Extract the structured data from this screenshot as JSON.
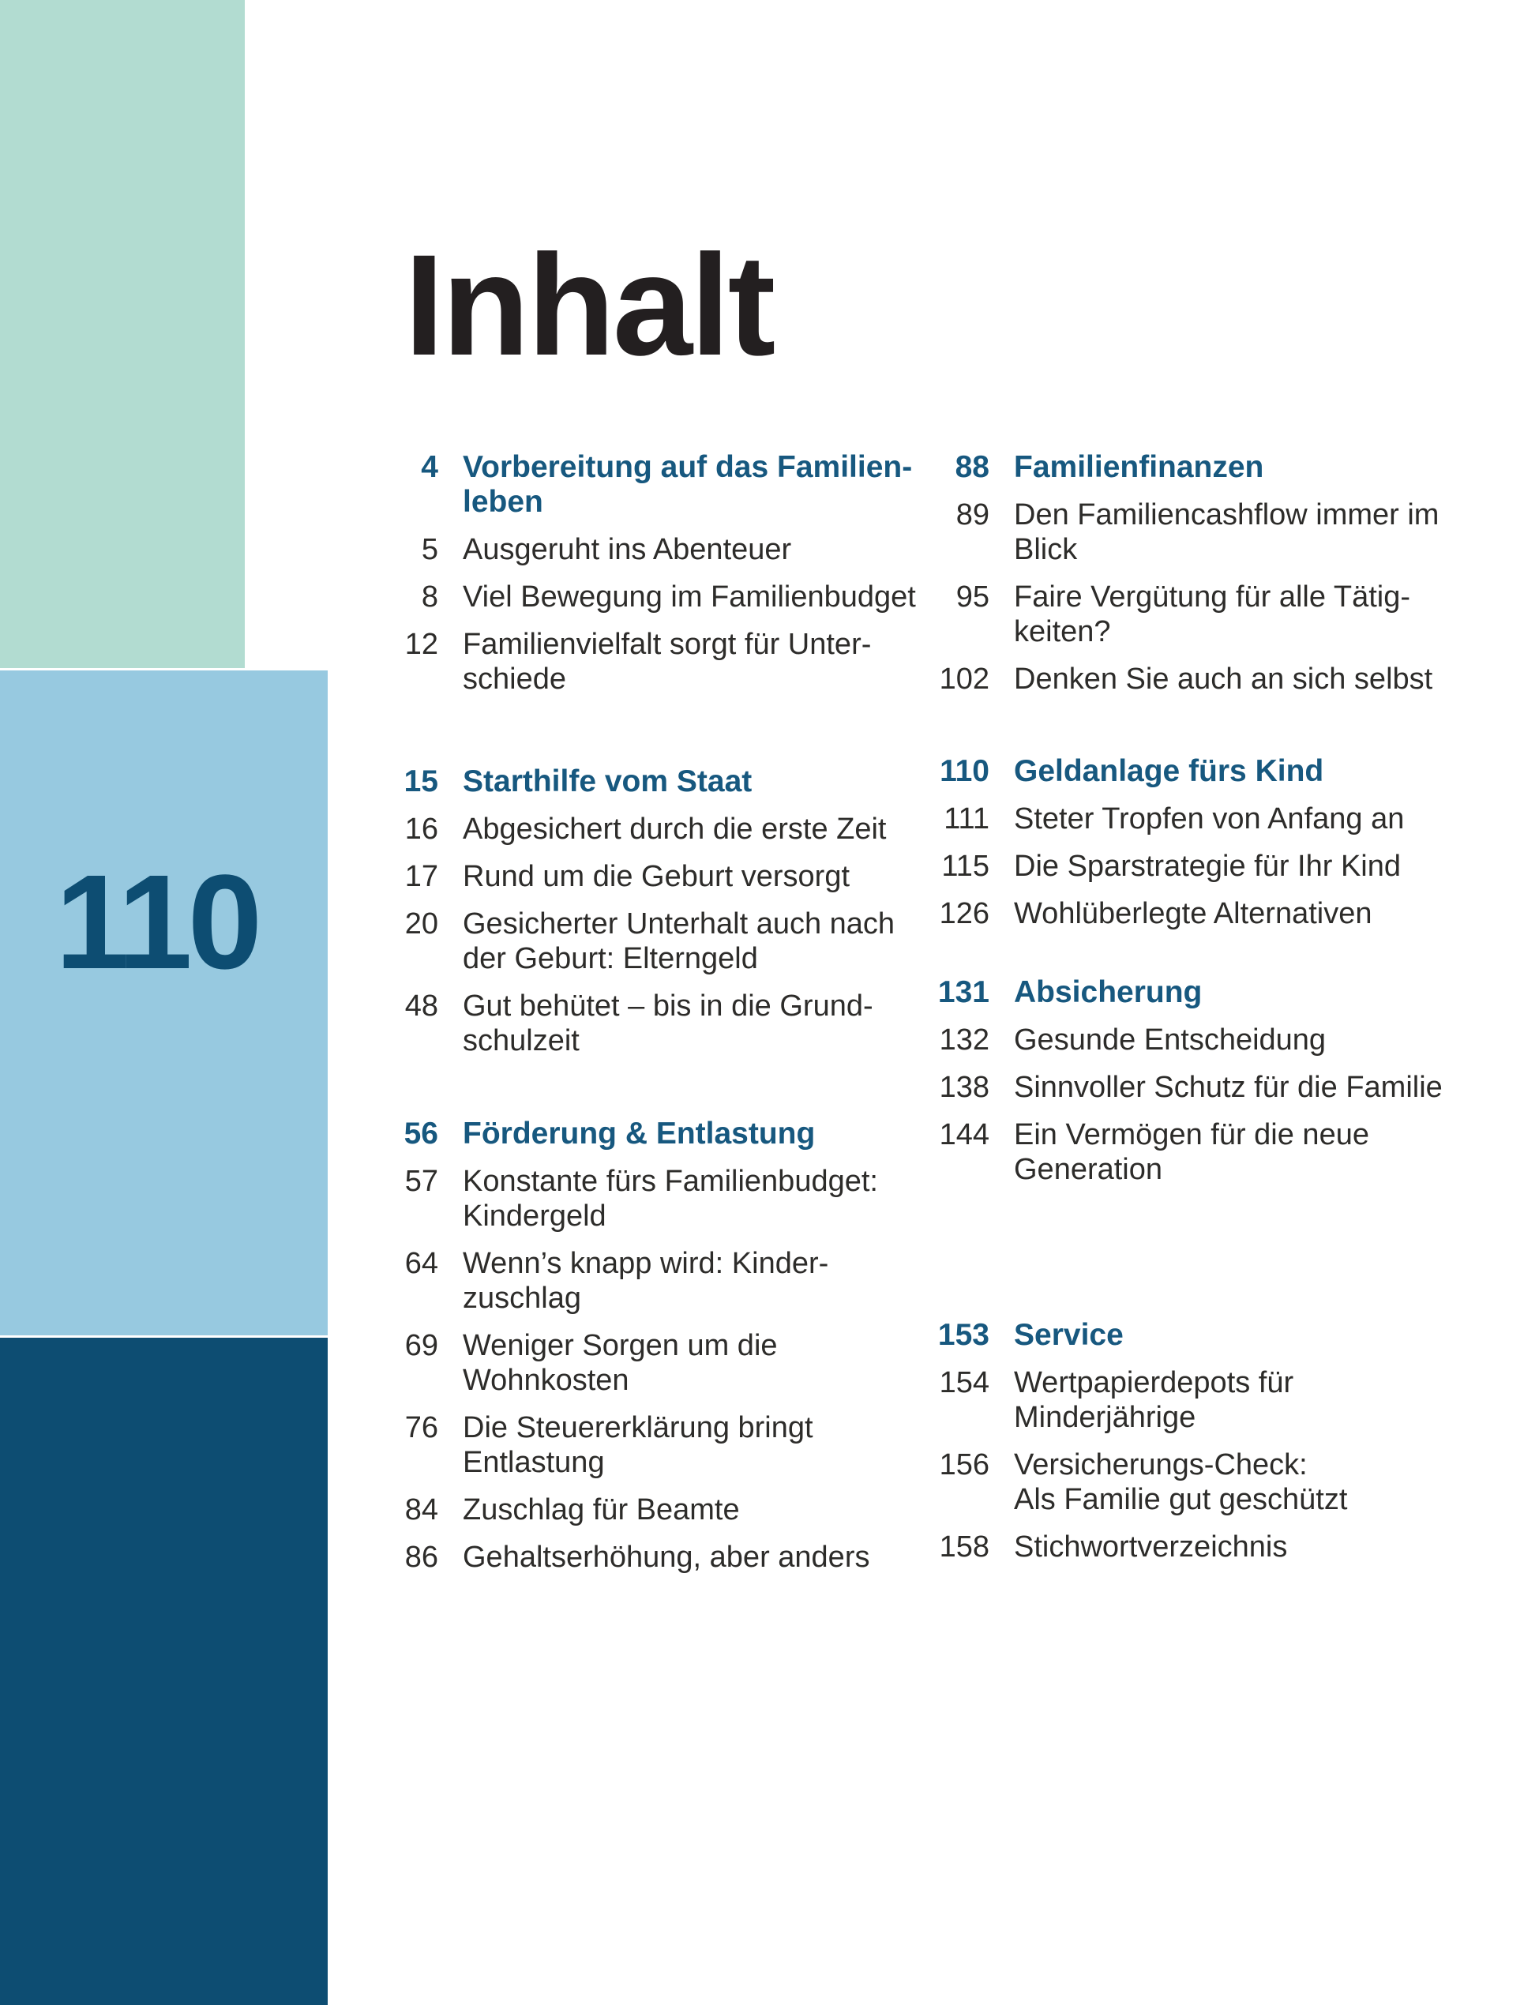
{
  "page_title": "Inhalt",
  "sidebar": {
    "badge_number": "110",
    "colors": {
      "green": "#b2dcd1",
      "light_blue": "#97c9e0",
      "dark_blue": "#0d4d72"
    }
  },
  "colors": {
    "heading_blue": "#17587f",
    "body_text": "#2d2c2a",
    "title_black": "#231f20"
  },
  "toc": {
    "left": [
      {
        "num": "4",
        "title": "Vorbereitung auf das Familien-\nleben",
        "items": [
          {
            "num": "5",
            "text": "Ausgeruht ins Abenteuer"
          },
          {
            "num": "8",
            "text": "Viel Bewegung im Familienbudget"
          },
          {
            "num": "12",
            "text": "Familienvielfalt sorgt für Unter-\nschiede"
          }
        ]
      },
      {
        "num": "15",
        "title": "Starthilfe vom Staat",
        "items": [
          {
            "num": "16",
            "text": "Abgesichert durch die erste Zeit"
          },
          {
            "num": "17",
            "text": "Rund um die Geburt versorgt"
          },
          {
            "num": "20",
            "text": "Gesicherter Unterhalt auch nach\nder Geburt: Elterngeld"
          },
          {
            "num": "48",
            "text": "Gut behütet – bis in die Grund-\nschulzeit"
          }
        ]
      },
      {
        "num": "56",
        "title": "Förderung & Entlastung",
        "items": [
          {
            "num": "57",
            "text": "Konstante fürs Familienbudget:\nKindergeld"
          },
          {
            "num": "64",
            "text": "Wenn’s knapp wird: Kinder-\nzuschlag"
          },
          {
            "num": "69",
            "text": "Weniger Sorgen um die\nWohnkosten"
          },
          {
            "num": "76",
            "text": "Die Steuererklärung bringt\nEntlastung"
          },
          {
            "num": "84",
            "text": "Zuschlag für Beamte"
          },
          {
            "num": "86",
            "text": "Gehaltserhöhung, aber anders"
          }
        ]
      }
    ],
    "right": [
      {
        "num": "88",
        "title": "Familienfinanzen",
        "items": [
          {
            "num": "89",
            "text": "Den Familiencashflow immer im\nBlick"
          },
          {
            "num": "95",
            "text": "Faire Vergütung für alle Tätig-\nkeiten?"
          },
          {
            "num": "102",
            "text": "Denken Sie auch an sich selbst"
          }
        ]
      },
      {
        "num": "110",
        "title": "Geldanlage fürs Kind",
        "items": [
          {
            "num": "111",
            "text": "Steter Tropfen von Anfang an"
          },
          {
            "num": "115",
            "text": "Die Sparstrategie für Ihr Kind"
          },
          {
            "num": "126",
            "text": "Wohlüberlegte Alternativen"
          }
        ]
      },
      {
        "num": "131",
        "title": "Absicherung",
        "items": [
          {
            "num": "132",
            "text": "Gesunde Entscheidung"
          },
          {
            "num": "138",
            "text": "Sinnvoller Schutz für die Familie"
          },
          {
            "num": "144",
            "text": "Ein Vermögen für die neue\nGeneration"
          }
        ]
      },
      {
        "num": "153",
        "title": "Service",
        "items": [
          {
            "num": "154",
            "text": "Wertpapierdepots für\nMinderjährige"
          },
          {
            "num": "156",
            "text": "Versicherungs-Check:\nAls Familie gut geschützt"
          },
          {
            "num": "158",
            "text": "Stichwortverzeichnis"
          }
        ]
      }
    ]
  }
}
